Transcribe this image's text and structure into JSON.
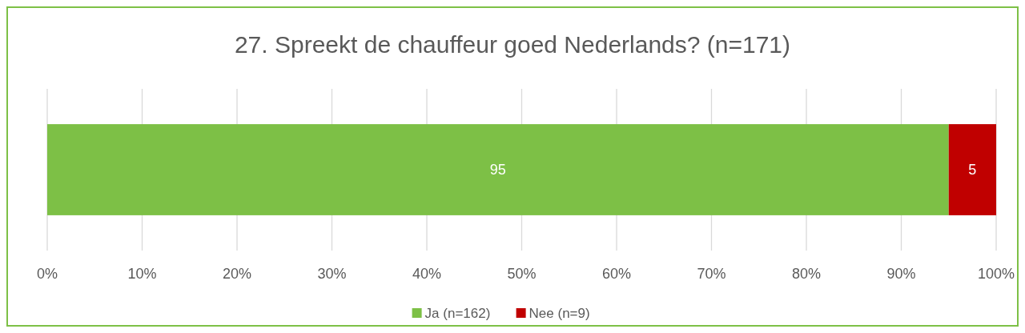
{
  "chart_data": {
    "type": "bar",
    "title": "27. Spreekt de chauffeur goed Nederlands? (n=171)",
    "orientation": "horizontal",
    "stacked": true,
    "categories": [
      null
    ],
    "series": [
      {
        "name": "Ja (n=162)",
        "color": "#7dc046",
        "values": [
          95
        ]
      },
      {
        "name": "Nee (n=9)",
        "color": "#c00000",
        "values": [
          5
        ]
      }
    ],
    "xlim": [
      0,
      100
    ],
    "xticks": [
      {
        "value": 0,
        "label": "0%"
      },
      {
        "value": 10,
        "label": "10%"
      },
      {
        "value": 20,
        "label": "20%"
      },
      {
        "value": 30,
        "label": "30%"
      },
      {
        "value": 40,
        "label": "40%"
      },
      {
        "value": 50,
        "label": "50%"
      },
      {
        "value": 60,
        "label": "60%"
      },
      {
        "value": 70,
        "label": "70%"
      },
      {
        "value": 80,
        "label": "80%"
      },
      {
        "value": 90,
        "label": "90%"
      },
      {
        "value": 100,
        "label": "100%"
      }
    ],
    "grid": "x",
    "legend": "bottom",
    "data_labels": true
  }
}
